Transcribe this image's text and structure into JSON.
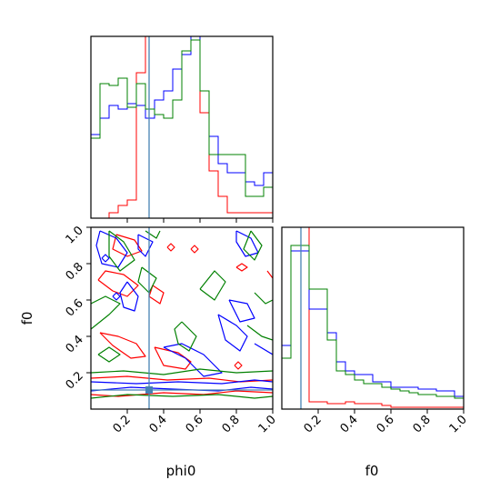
{
  "chart_data": [
    {
      "type": "histogram",
      "panel": "phi0 marginal",
      "xlim": [
        0,
        1
      ],
      "truth": 0.32,
      "bin_edges": [
        0,
        0.05,
        0.1,
        0.15,
        0.2,
        0.25,
        0.3,
        0.35,
        0.4,
        0.45,
        0.5,
        0.55,
        0.6,
        0.65,
        0.7,
        0.75,
        0.8,
        0.85,
        0.9,
        0.95,
        1.0
      ],
      "series": [
        {
          "color": "#ff0000",
          "values": [
            0,
            0,
            0.03,
            0.07,
            0.1,
            0.8,
            1.0,
            1.0,
            1.0,
            1.0,
            1.0,
            1.0,
            0.58,
            0.26,
            0.12,
            0.03,
            0.03,
            0.03,
            0.03,
            0.03
          ]
        },
        {
          "color": "#0000ff",
          "values": [
            0.46,
            0.55,
            0.62,
            0.6,
            0.63,
            0.62,
            0.55,
            0.65,
            0.7,
            0.82,
            0.9,
            1.0,
            0.7,
            0.45,
            0.3,
            0.25,
            0.25,
            0.2,
            0.18,
            0.25
          ]
        },
        {
          "color": "#008000",
          "values": [
            0.44,
            0.74,
            0.73,
            0.77,
            0.61,
            0.74,
            0.6,
            0.57,
            0.55,
            0.65,
            0.92,
            0.98,
            0.7,
            0.35,
            0.35,
            0.35,
            0.35,
            0.12,
            0.12,
            0.17
          ]
        }
      ]
    },
    {
      "type": "contour",
      "panel": "joint phi0 vs f0",
      "xlabel": "phi0",
      "ylabel": "f0",
      "xlim": [
        0,
        1
      ],
      "ylim": [
        0,
        1
      ],
      "xticks": [
        "0.2",
        "0.4",
        "0.6",
        "0.8",
        "1.0"
      ],
      "yticks": [
        "0.2",
        "0.4",
        "0.6",
        "0.8",
        "1.0"
      ],
      "truth": {
        "x": 0.32,
        "y": 0.105
      },
      "series": [
        {
          "color": "#ff0000",
          "contours": [
            [
              [
                0.0,
                0.08
              ],
              [
                0.15,
                0.07
              ],
              [
                0.4,
                0.09
              ],
              [
                0.62,
                0.08
              ],
              [
                0.8,
                0.1
              ],
              [
                1.0,
                0.09
              ]
            ],
            [
              [
                0.0,
                0.17
              ],
              [
                0.2,
                0.18
              ],
              [
                0.42,
                0.16
              ],
              [
                0.65,
                0.17
              ],
              [
                0.82,
                0.15
              ],
              [
                1.0,
                0.16
              ]
            ],
            [
              [
                0.05,
                0.42
              ],
              [
                0.12,
                0.35
              ],
              [
                0.22,
                0.28
              ],
              [
                0.3,
                0.29
              ],
              [
                0.25,
                0.36
              ],
              [
                0.15,
                0.4
              ],
              [
                0.05,
                0.42
              ]
            ],
            [
              [
                0.35,
                0.34
              ],
              [
                0.48,
                0.31
              ],
              [
                0.55,
                0.26
              ],
              [
                0.52,
                0.22
              ],
              [
                0.4,
                0.24
              ],
              [
                0.35,
                0.34
              ]
            ],
            [
              [
                0.04,
                0.71
              ],
              [
                0.12,
                0.65
              ],
              [
                0.2,
                0.62
              ],
              [
                0.26,
                0.68
              ],
              [
                0.18,
                0.74
              ],
              [
                0.08,
                0.76
              ],
              [
                0.04,
                0.71
              ]
            ],
            [
              [
                0.14,
                0.96
              ],
              [
                0.24,
                0.93
              ],
              [
                0.28,
                0.87
              ],
              [
                0.2,
                0.84
              ],
              [
                0.12,
                0.88
              ],
              [
                0.14,
                0.96
              ]
            ],
            [
              [
                0.34,
                0.68
              ],
              [
                0.4,
                0.64
              ],
              [
                0.38,
                0.58
              ],
              [
                0.32,
                0.62
              ],
              [
                0.34,
                0.68
              ]
            ],
            [
              [
                0.79,
                0.24
              ],
              [
                0.81,
                0.22
              ],
              [
                0.83,
                0.24
              ],
              [
                0.81,
                0.26
              ],
              [
                0.79,
                0.24
              ]
            ],
            [
              [
                0.42,
                0.89
              ],
              [
                0.44,
                0.87
              ],
              [
                0.46,
                0.89
              ],
              [
                0.44,
                0.91
              ],
              [
                0.42,
                0.89
              ]
            ],
            [
              [
                0.55,
                0.88
              ],
              [
                0.57,
                0.86
              ],
              [
                0.59,
                0.88
              ],
              [
                0.57,
                0.9
              ],
              [
                0.55,
                0.88
              ]
            ],
            [
              [
                0.8,
                0.78
              ],
              [
                0.83,
                0.76
              ],
              [
                0.86,
                0.78
              ],
              [
                0.83,
                0.8
              ],
              [
                0.8,
                0.78
              ]
            ],
            [
              [
                0.97,
                0.76
              ],
              [
                1.0,
                0.72
              ]
            ]
          ]
        },
        {
          "color": "#0000ff",
          "contours": [
            [
              [
                0.0,
                0.1
              ],
              [
                0.22,
                0.12
              ],
              [
                0.45,
                0.11
              ],
              [
                0.7,
                0.1
              ],
              [
                0.88,
                0.12
              ],
              [
                1.0,
                0.11
              ]
            ],
            [
              [
                0.0,
                0.15
              ],
              [
                0.25,
                0.14
              ],
              [
                0.48,
                0.15
              ],
              [
                0.72,
                0.14
              ],
              [
                0.9,
                0.16
              ],
              [
                1.0,
                0.15
              ]
            ],
            [
              [
                0.05,
                0.98
              ],
              [
                0.14,
                0.94
              ],
              [
                0.2,
                0.86
              ],
              [
                0.15,
                0.78
              ],
              [
                0.06,
                0.8
              ],
              [
                0.03,
                0.9
              ],
              [
                0.05,
                0.98
              ]
            ],
            [
              [
                0.2,
                0.7
              ],
              [
                0.26,
                0.62
              ],
              [
                0.24,
                0.54
              ],
              [
                0.18,
                0.56
              ],
              [
                0.16,
                0.64
              ],
              [
                0.2,
                0.7
              ]
            ],
            [
              [
                0.26,
                0.96
              ],
              [
                0.34,
                0.92
              ],
              [
                0.3,
                0.84
              ],
              [
                0.26,
                0.88
              ],
              [
                0.26,
                0.96
              ]
            ],
            [
              [
                0.4,
                0.34
              ],
              [
                0.52,
                0.28
              ],
              [
                0.62,
                0.18
              ],
              [
                0.72,
                0.2
              ],
              [
                0.62,
                0.3
              ],
              [
                0.5,
                0.36
              ],
              [
                0.4,
                0.34
              ]
            ],
            [
              [
                0.7,
                0.52
              ],
              [
                0.8,
                0.46
              ],
              [
                0.86,
                0.4
              ],
              [
                0.82,
                0.32
              ],
              [
                0.74,
                0.38
              ],
              [
                0.7,
                0.52
              ]
            ],
            [
              [
                0.76,
                0.6
              ],
              [
                0.86,
                0.58
              ],
              [
                0.9,
                0.5
              ],
              [
                0.82,
                0.48
              ],
              [
                0.76,
                0.6
              ]
            ],
            [
              [
                0.8,
                0.98
              ],
              [
                0.88,
                0.94
              ],
              [
                0.92,
                0.86
              ],
              [
                0.85,
                0.84
              ],
              [
                0.8,
                0.92
              ],
              [
                0.8,
                0.98
              ]
            ],
            [
              [
                0.9,
                0.36
              ],
              [
                1.0,
                0.3
              ]
            ],
            [
              [
                0.06,
                0.83
              ],
              [
                0.08,
                0.81
              ],
              [
                0.1,
                0.83
              ],
              [
                0.08,
                0.85
              ],
              [
                0.06,
                0.83
              ]
            ],
            [
              [
                0.12,
                0.62
              ],
              [
                0.14,
                0.6
              ],
              [
                0.16,
                0.62
              ],
              [
                0.14,
                0.64
              ],
              [
                0.12,
                0.62
              ]
            ]
          ]
        },
        {
          "color": "#008000",
          "contours": [
            [
              [
                0.0,
                0.06
              ],
              [
                0.2,
                0.08
              ],
              [
                0.45,
                0.07
              ],
              [
                0.7,
                0.08
              ],
              [
                0.9,
                0.06
              ],
              [
                1.0,
                0.07
              ]
            ],
            [
              [
                0.0,
                0.2
              ],
              [
                0.18,
                0.21
              ],
              [
                0.4,
                0.19
              ],
              [
                0.6,
                0.22
              ],
              [
                0.8,
                0.2
              ],
              [
                1.0,
                0.21
              ]
            ],
            [
              [
                0.0,
                0.44
              ],
              [
                0.1,
                0.52
              ],
              [
                0.16,
                0.58
              ],
              [
                0.08,
                0.62
              ],
              [
                0.0,
                0.58
              ]
            ],
            [
              [
                0.1,
                0.98
              ],
              [
                0.18,
                0.92
              ],
              [
                0.24,
                0.82
              ],
              [
                0.16,
                0.76
              ],
              [
                0.1,
                0.84
              ],
              [
                0.1,
                0.98
              ]
            ],
            [
              [
                0.28,
                0.78
              ],
              [
                0.36,
                0.72
              ],
              [
                0.32,
                0.64
              ],
              [
                0.26,
                0.7
              ],
              [
                0.28,
                0.78
              ]
            ],
            [
              [
                0.5,
                0.48
              ],
              [
                0.58,
                0.4
              ],
              [
                0.54,
                0.32
              ],
              [
                0.48,
                0.36
              ],
              [
                0.46,
                0.44
              ],
              [
                0.5,
                0.48
              ]
            ],
            [
              [
                0.6,
                0.66
              ],
              [
                0.68,
                0.76
              ],
              [
                0.74,
                0.7
              ],
              [
                0.68,
                0.6
              ],
              [
                0.6,
                0.66
              ]
            ],
            [
              [
                0.88,
                0.98
              ],
              [
                0.94,
                0.9
              ],
              [
                0.9,
                0.82
              ],
              [
                0.84,
                0.88
              ],
              [
                0.88,
                0.98
              ]
            ],
            [
              [
                0.86,
                0.46
              ],
              [
                0.94,
                0.4
              ],
              [
                1.0,
                0.38
              ]
            ],
            [
              [
                0.3,
                0.98
              ],
              [
                0.36,
                0.94
              ],
              [
                0.38,
                0.98
              ]
            ],
            [
              [
                0.9,
                0.64
              ],
              [
                0.96,
                0.58
              ],
              [
                1.0,
                0.6
              ]
            ],
            [
              [
                0.04,
                0.3
              ],
              [
                0.1,
                0.26
              ],
              [
                0.16,
                0.3
              ],
              [
                0.1,
                0.34
              ],
              [
                0.04,
                0.3
              ]
            ]
          ]
        }
      ]
    },
    {
      "type": "histogram",
      "panel": "f0 marginal",
      "xlabel": "f0",
      "xlim": [
        0,
        1
      ],
      "xticks": [
        "0.2",
        "0.4",
        "0.6",
        "0.8",
        "1.0"
      ],
      "truth": 0.105,
      "bin_edges": [
        0,
        0.05,
        0.1,
        0.15,
        0.2,
        0.25,
        0.3,
        0.35,
        0.4,
        0.45,
        0.5,
        0.55,
        0.6,
        0.65,
        0.7,
        0.75,
        0.8,
        0.85,
        0.9,
        0.95,
        1.0
      ],
      "series": [
        {
          "color": "#ff0000",
          "values": [
            1.0,
            1.0,
            1.0,
            0.04,
            0.04,
            0.03,
            0.03,
            0.04,
            0.03,
            0.03,
            0.03,
            0.02,
            0.01,
            0.01,
            0.01,
            0.01,
            0.01,
            0.01,
            0.01,
            0.01
          ]
        },
        {
          "color": "#0000ff",
          "values": [
            0.35,
            0.87,
            0.87,
            0.55,
            0.55,
            0.42,
            0.26,
            0.21,
            0.19,
            0.19,
            0.15,
            0.15,
            0.12,
            0.12,
            0.12,
            0.11,
            0.11,
            0.1,
            0.1,
            0.07
          ]
        },
        {
          "color": "#008000",
          "values": [
            0.28,
            0.9,
            0.9,
            0.66,
            0.66,
            0.38,
            0.21,
            0.19,
            0.16,
            0.14,
            0.14,
            0.12,
            0.11,
            0.1,
            0.09,
            0.08,
            0.08,
            0.07,
            0.07,
            0.06
          ]
        }
      ]
    }
  ]
}
